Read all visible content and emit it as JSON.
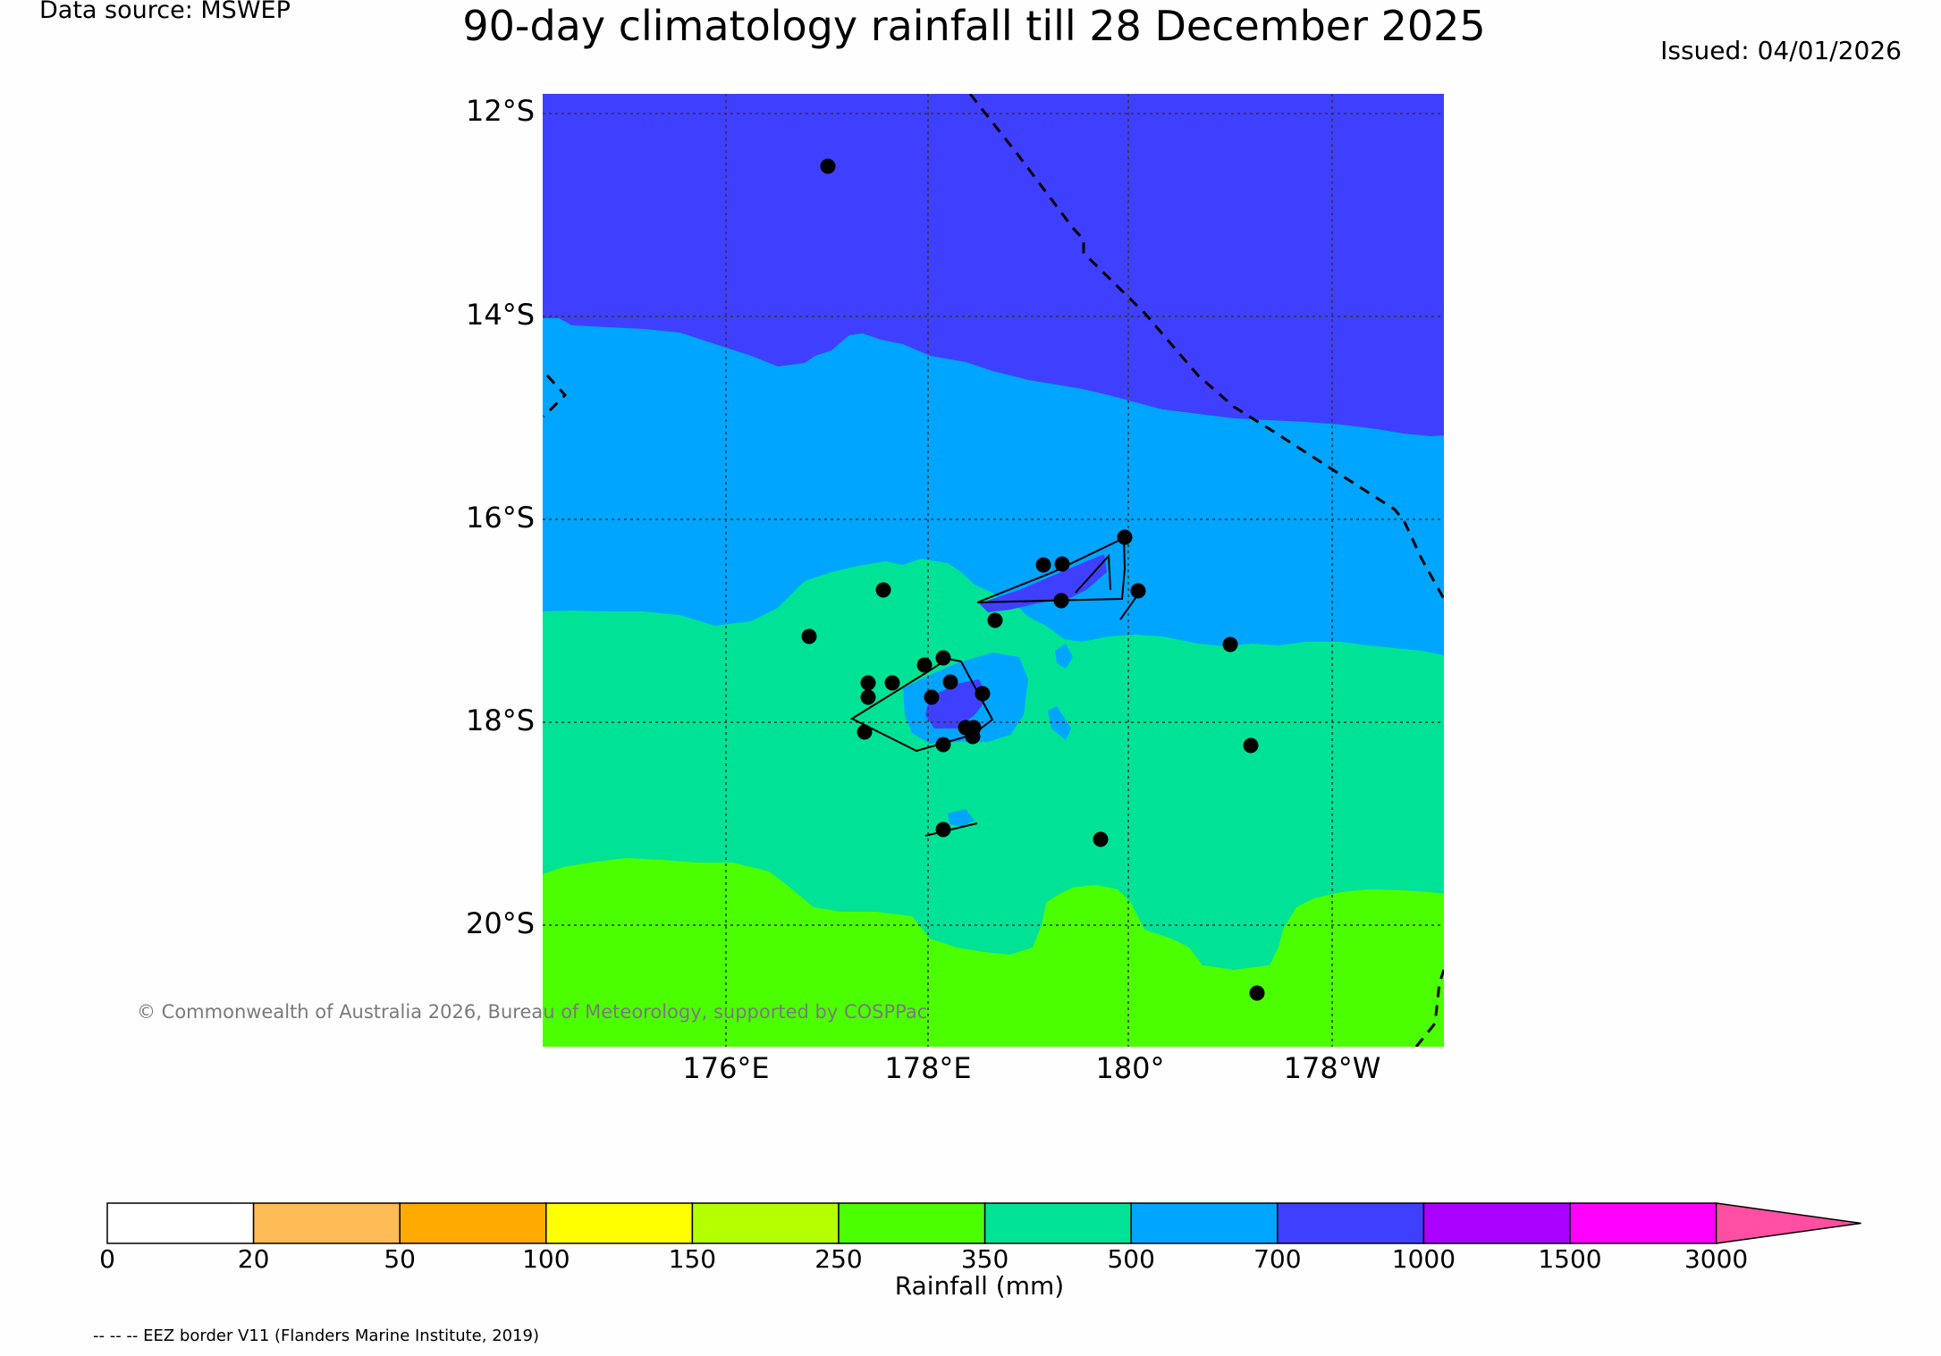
{
  "header": {
    "data_source": "Data source: MSWEP",
    "title": "90-day climatology rainfall till 28 December 2025",
    "issued": "Issued: 04/01/2026"
  },
  "map": {
    "lat_labels": [
      "12°S",
      "14°S",
      "16°S",
      "18°S",
      "20°S"
    ],
    "lon_labels": [
      "176°E",
      "178°E",
      "180°",
      "178°W"
    ],
    "copyright": "© Commonwealth of Australia 2026, Bureau of Meteorology, supported by COSPPac",
    "colors": {
      "band_700_1000": "#3f3fff",
      "band_500_700": "#00a5ff",
      "band_350_500": "#00e396",
      "band_250_350": "#4cff00"
    }
  },
  "colorbar": {
    "tick_labels": [
      "0",
      "20",
      "50",
      "100",
      "150",
      "250",
      "350",
      "500",
      "700",
      "1000",
      "1500",
      "3000"
    ],
    "colors": [
      "#ffffff",
      "#ffbb55",
      "#ffaa00",
      "#ffff00",
      "#b4ff00",
      "#4cff00",
      "#00e396",
      "#00a5ff",
      "#3f3fff",
      "#aa00ff",
      "#ff00ff",
      "#ff4fa3"
    ],
    "label": "Rainfall (mm)"
  },
  "footer": {
    "eez_note": "-- -- -- EEZ border V11 (Flanders Marine Institute, 2019)"
  }
}
